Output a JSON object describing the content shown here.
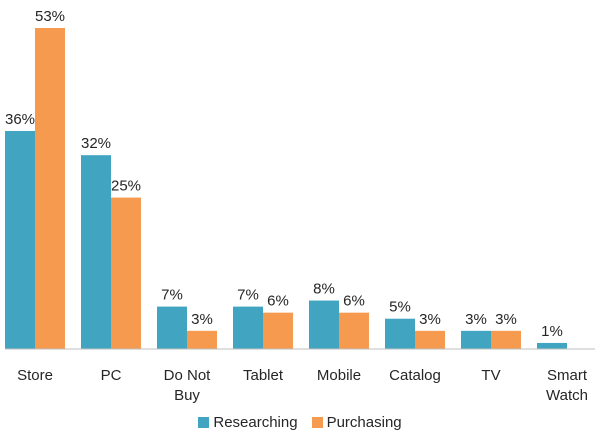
{
  "chart_data": {
    "type": "bar",
    "categories": [
      "Store",
      "PC",
      "Do Not Buy",
      "Tablet",
      "Mobile",
      "Catalog",
      "TV",
      "Smart Watch"
    ],
    "series": [
      {
        "name": "Researching",
        "values": [
          36,
          32,
          7,
          7,
          8,
          5,
          3,
          1
        ],
        "labels": [
          "36%",
          "32%",
          "7%",
          "7%",
          "8%",
          "5%",
          "3%",
          "1%"
        ],
        "color": "#41a4c1"
      },
      {
        "name": "Purchasing",
        "values": [
          53,
          25,
          3,
          6,
          6,
          3,
          3,
          null
        ],
        "labels": [
          "53%",
          "25%",
          "3%",
          "6%",
          "6%",
          "3%",
          "3%",
          ""
        ],
        "color": "#f59a4e"
      }
    ],
    "title": "",
    "xlabel": "",
    "ylabel": "",
    "ylim": [
      0,
      55
    ],
    "grid": false,
    "legend_position": "bottom"
  }
}
